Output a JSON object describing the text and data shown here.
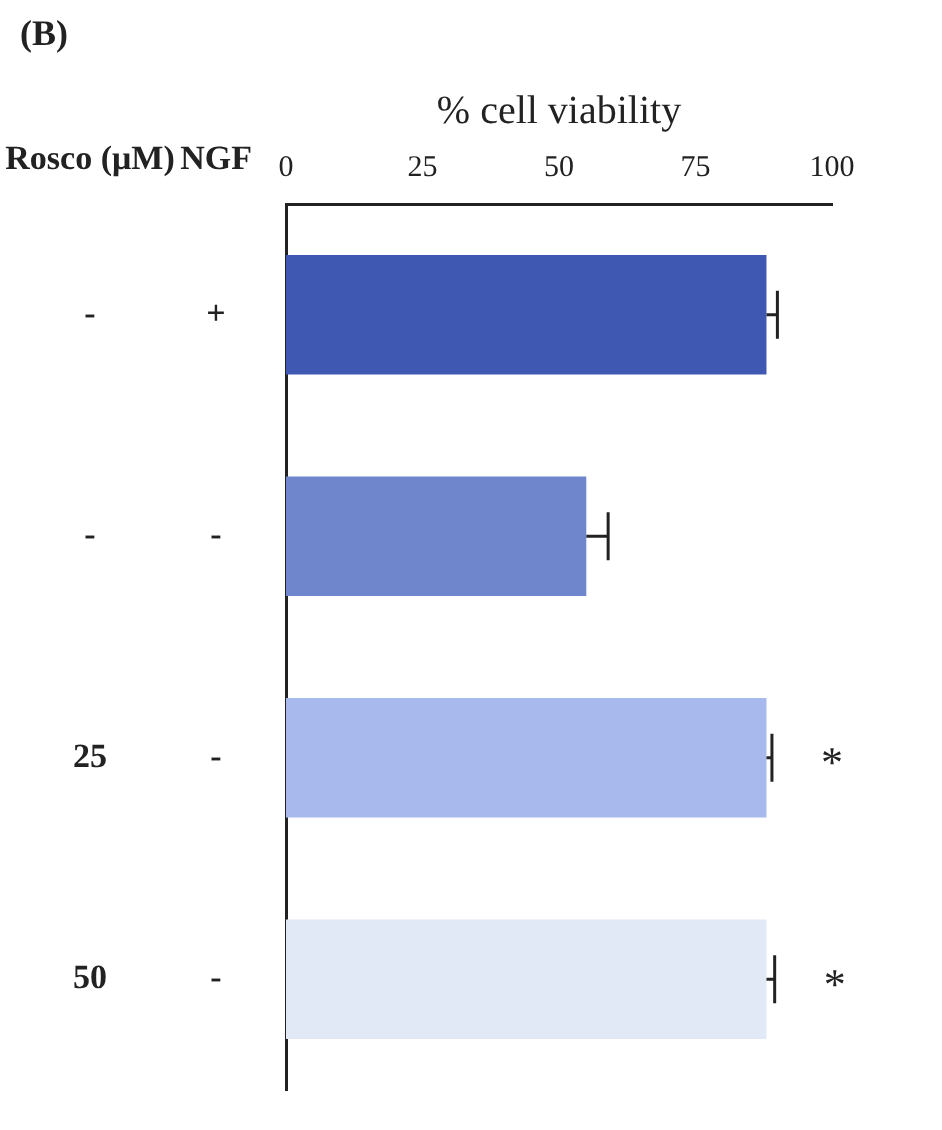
{
  "chart_data": {
    "type": "bar",
    "orientation": "horizontal",
    "title": "(B)",
    "xlabel": "% cell viability",
    "ylabel": "NGF",
    "categories": [
      "+",
      "-",
      "-",
      "-"
    ],
    "values": [
      88,
      55,
      88,
      88
    ],
    "errors": [
      2,
      4,
      1,
      1.5
    ],
    "colors": [
      "#3f59b3",
      "#6f86cc",
      "#a8b9ee",
      "#e2e9f6"
    ],
    "xlim": [
      0,
      100
    ],
    "xticks": [
      0,
      25,
      50,
      75,
      100
    ],
    "grid": false,
    "legend": false,
    "annotations": [
      "Rosco (μM)",
      "-",
      "-",
      "25",
      "50",
      "*",
      "*"
    ]
  }
}
